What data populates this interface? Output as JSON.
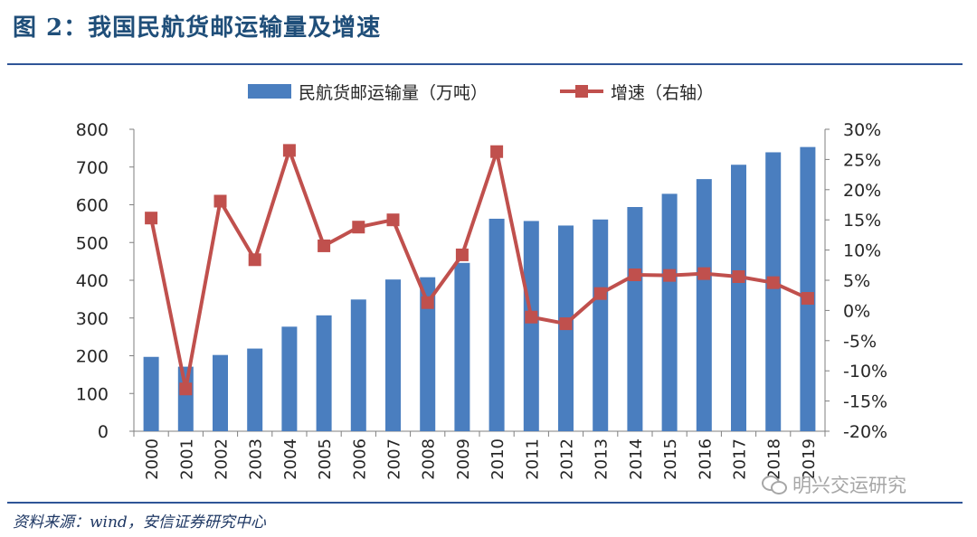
{
  "figure": {
    "title": "图 2：我国民航货邮运输量及增速",
    "source": "资料来源：wind，安信证券研究中心",
    "watermark": "明兴交运研究"
  },
  "colors": {
    "bar": "#4a7ebf",
    "line": "#c0504d",
    "accent": "#2f5597",
    "title": "#1f4e79"
  },
  "chart_data": {
    "type": "bar+line",
    "title": "",
    "categories": [
      "2000",
      "2001",
      "2002",
      "2003",
      "2004",
      "2005",
      "2006",
      "2007",
      "2008",
      "2009",
      "2010",
      "2011",
      "2012",
      "2013",
      "2014",
      "2015",
      "2016",
      "2017",
      "2018",
      "2019"
    ],
    "series": [
      {
        "name": "民航货邮运输量（万吨）",
        "type": "bar",
        "axis": "left",
        "values": [
          197,
          171,
          202,
          219,
          277,
          307,
          349,
          402,
          408,
          446,
          563,
          557,
          545,
          561,
          594,
          629,
          668,
          706,
          739,
          753
        ]
      },
      {
        "name": "增速（右轴）",
        "type": "line",
        "axis": "right",
        "values": [
          15.3,
          -13.0,
          18.1,
          8.4,
          26.5,
          10.7,
          13.8,
          15.0,
          1.3,
          9.2,
          26.3,
          -1.1,
          -2.2,
          2.8,
          5.9,
          5.8,
          6.1,
          5.6,
          4.6,
          2.0
        ]
      }
    ],
    "y_left": {
      "ylim": [
        0,
        800
      ],
      "ticks": [
        "0",
        "100",
        "200",
        "300",
        "400",
        "500",
        "600",
        "700",
        "800"
      ]
    },
    "y_right": {
      "ylim": [
        -20,
        30
      ],
      "ticks": [
        "-20%",
        "-15%",
        "-10%",
        "-5%",
        "0%",
        "5%",
        "10%",
        "15%",
        "20%",
        "25%",
        "30%"
      ]
    },
    "legend": [
      "民航货邮运输量（万吨）",
      "增速（右轴）"
    ],
    "legend_position": "top"
  }
}
